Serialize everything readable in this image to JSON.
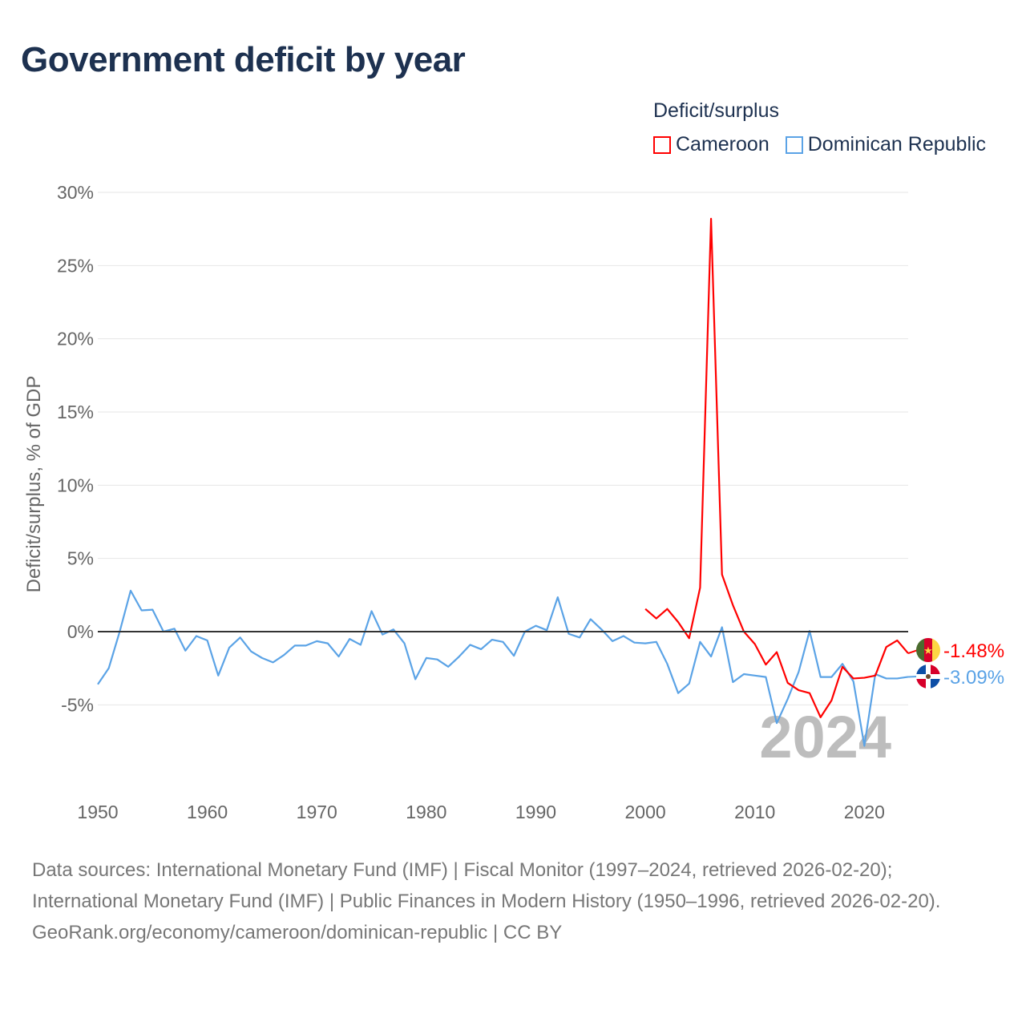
{
  "title": "Government deficit by year",
  "legend": {
    "title": "Deficit/surplus",
    "items": [
      {
        "label": "Cameroon",
        "color": "#ff0000"
      },
      {
        "label": "Dominican Republic",
        "color": "#5ba3e6"
      }
    ]
  },
  "watermark_year": "2024",
  "footer": {
    "sources": "Data sources: International Monetary Fund (IMF) | Fiscal Monitor (1997–2024, retrieved 2026-02-20); International Monetary Fund (IMF) | Public Finances in Modern History (1950–1996, retrieved 2026-02-20).",
    "attribution": "GeoRank.org/economy/cameroon/dominican-republic | CC BY"
  },
  "chart_data": {
    "type": "line",
    "title": "Government deficit by year",
    "xlabel": "",
    "ylabel": "Deficit/surplus, % of GDP",
    "xlim": [
      1950,
      2024
    ],
    "ylim": [
      -10,
      30
    ],
    "xticks": [
      1950,
      1960,
      1970,
      1980,
      1990,
      2000,
      2010,
      2020
    ],
    "yticks": [
      -5,
      0,
      5,
      10,
      15,
      20,
      25,
      30
    ],
    "ytick_labels": [
      "-5%",
      "0%",
      "5%",
      "10%",
      "15%",
      "20%",
      "25%",
      "30%"
    ],
    "grid": true,
    "series": [
      {
        "name": "Cameroon",
        "color": "#ff0000",
        "end_label": "-1.48%",
        "flag": "cameroon-flag",
        "x": [
          2000,
          2001,
          2002,
          2003,
          2004,
          2005,
          2006,
          2007,
          2008,
          2009,
          2010,
          2011,
          2012,
          2013,
          2014,
          2015,
          2016,
          2017,
          2018,
          2019,
          2020,
          2021,
          2022,
          2023,
          2024
        ],
        "values": [
          1.55,
          0.9,
          1.55,
          0.65,
          -0.45,
          3.0,
          28.2,
          3.9,
          1.8,
          0,
          -0.85,
          -2.25,
          -1.4,
          -3.5,
          -4.0,
          -4.2,
          -5.85,
          -4.7,
          -2.4,
          -3.2,
          -3.15,
          -3.0,
          -1.05,
          -0.6,
          -1.48
        ]
      },
      {
        "name": "Dominican Republic",
        "color": "#5ba3e6",
        "end_label": "-3.09%",
        "flag": "dominican-republic-flag",
        "x": [
          1950,
          1951,
          1952,
          1953,
          1954,
          1955,
          1956,
          1957,
          1958,
          1959,
          1960,
          1961,
          1962,
          1963,
          1964,
          1965,
          1966,
          1967,
          1968,
          1969,
          1970,
          1971,
          1972,
          1973,
          1974,
          1975,
          1976,
          1977,
          1978,
          1979,
          1980,
          1981,
          1982,
          1983,
          1984,
          1985,
          1986,
          1987,
          1988,
          1989,
          1990,
          1991,
          1992,
          1993,
          1994,
          1995,
          1996,
          1997,
          1998,
          1999,
          2000,
          2001,
          2002,
          2003,
          2004,
          2005,
          2006,
          2007,
          2008,
          2009,
          2010,
          2011,
          2012,
          2013,
          2014,
          2015,
          2016,
          2017,
          2018,
          2019,
          2020,
          2021,
          2022,
          2023,
          2024
        ],
        "values": [
          -3.6,
          -2.5,
          0,
          2.8,
          1.45,
          1.5,
          0,
          0.2,
          -1.3,
          -0.3,
          -0.6,
          -3.0,
          -1.1,
          -0.4,
          -1.35,
          -1.8,
          -2.1,
          -1.6,
          -0.95,
          -0.95,
          -0.65,
          -0.8,
          -1.7,
          -0.5,
          -0.9,
          1.4,
          -0.2,
          0.15,
          -0.8,
          -3.25,
          -1.8,
          -1.9,
          -2.4,
          -1.7,
          -0.9,
          -1.2,
          -0.55,
          -0.7,
          -1.65,
          0,
          0.4,
          0.1,
          2.35,
          -0.15,
          -0.4,
          0.85,
          0.15,
          -0.65,
          -0.3,
          -0.75,
          -0.8,
          -0.7,
          -2.2,
          -4.2,
          -3.55,
          -0.7,
          -1.7,
          0.3,
          -3.45,
          -2.9,
          -3.0,
          -3.1,
          -6.25,
          -4.6,
          -2.75,
          0.05,
          -3.1,
          -3.1,
          -2.2,
          -3.4,
          -7.8,
          -2.9,
          -3.2,
          -3.2,
          -3.09
        ]
      }
    ]
  }
}
